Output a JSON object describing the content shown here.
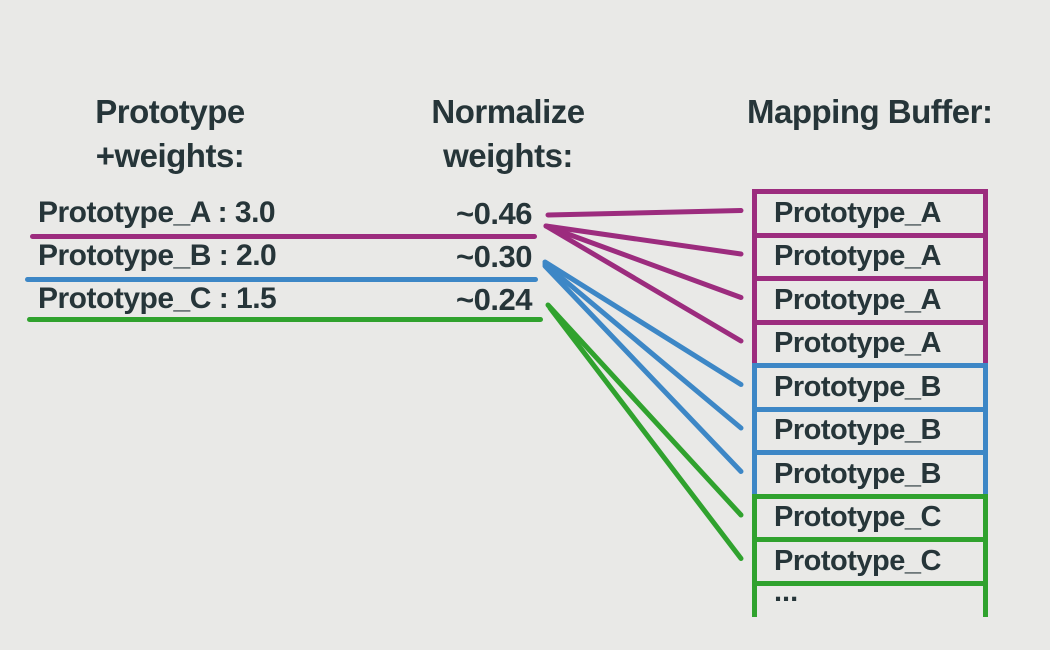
{
  "background_color": "#e9e9e7",
  "text_color": "#263539",
  "palette": {
    "magenta": "#9c2c7e",
    "blue": "#3d87c6",
    "green": "#30a22e"
  },
  "left_column": {
    "heading_line1": "Prototype",
    "heading_line2": "+weights:",
    "items": [
      {
        "label": "Prototype_A : 3.0",
        "weight": "3.0",
        "color_key": "magenta"
      },
      {
        "label": "Prototype_B : 2.0",
        "weight": "2.0",
        "color_key": "blue"
      },
      {
        "label": "Prototype_C : 1.5",
        "weight": "1.5",
        "color_key": "green"
      }
    ]
  },
  "middle_column": {
    "heading_line1": "Normalize",
    "heading_line2": "weights:",
    "values": [
      {
        "label": "~0.46",
        "color_key": "magenta"
      },
      {
        "label": "~0.30",
        "color_key": "blue"
      },
      {
        "label": "~0.24",
        "color_key": "green"
      }
    ]
  },
  "mapping_buffer": {
    "heading": "Mapping Buffer:",
    "cells": [
      {
        "label": "Prototype_A",
        "color_key": "magenta"
      },
      {
        "label": "Prototype_A",
        "color_key": "magenta"
      },
      {
        "label": "Prototype_A",
        "color_key": "magenta"
      },
      {
        "label": "Prototype_A",
        "color_key": "magenta"
      },
      {
        "label": "Prototype_B",
        "color_key": "blue"
      },
      {
        "label": "Prototype_B",
        "color_key": "blue"
      },
      {
        "label": "Prototype_B",
        "color_key": "blue"
      },
      {
        "label": "Prototype_C",
        "color_key": "green"
      },
      {
        "label": "Prototype_C",
        "color_key": "green"
      }
    ],
    "overflow_label": "...",
    "overflow_color_key": "green"
  },
  "connections": [
    {
      "from_weight": "Prototype_A",
      "color_key": "magenta",
      "to_cells": [
        0,
        1,
        2,
        3
      ]
    },
    {
      "from_weight": "Prototype_B",
      "color_key": "blue",
      "to_cells": [
        4,
        5,
        6
      ]
    },
    {
      "from_weight": "Prototype_C",
      "color_key": "green",
      "to_cells": [
        7,
        8
      ]
    }
  ]
}
